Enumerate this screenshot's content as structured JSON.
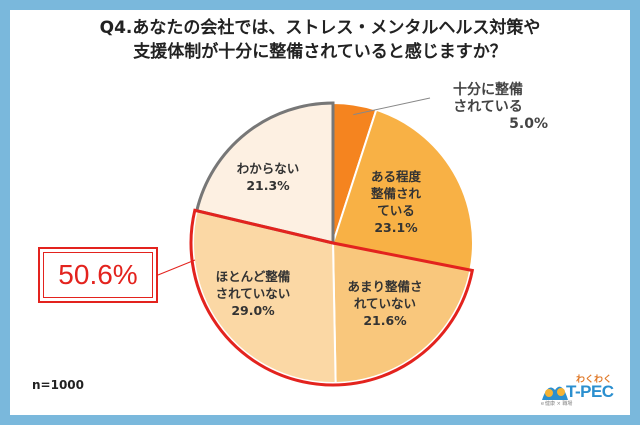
{
  "chart_data": {
    "type": "pie",
    "title": "Q4.あなたの会社では、ストレス・メンタルヘルス対策や\n支援体制が十分に整備されていると感じますか？",
    "slices": [
      {
        "label": "十分に整備\nされている",
        "value": 5.0,
        "display": "5.0%",
        "color": "#f5841f"
      },
      {
        "label": "ある程度\n整備され\nている",
        "value": 23.1,
        "display": "23.1%",
        "color": "#f8b145"
      },
      {
        "label": "あまり整備さ\nれていない",
        "value": 21.6,
        "display": "21.6%",
        "color": "#f9c77c"
      },
      {
        "label": "ほとんど整備\nされていない",
        "value": 29.0,
        "display": "29.0%",
        "color": "#fbd8a5"
      },
      {
        "label": "わからない",
        "value": 21.3,
        "display": "21.3%",
        "color": "#fdf0e2"
      }
    ],
    "highlight_total": "50.6%",
    "note": "n=1000"
  },
  "title_line1": "Q4.あなたの会社では、ストレス・メンタルヘルス対策や",
  "title_line2": "支援体制が十分に整備されていると感じますか？",
  "callout": "50.6%",
  "n_label": "n=1000",
  "logo": {
    "top": "わくわく",
    "brand": "T-PEC",
    "sub": "ｅ健康 × 職場"
  },
  "colors": {
    "background": "#7ab8dc",
    "highlight": "#e3231e",
    "unknown_border": "#777777"
  }
}
